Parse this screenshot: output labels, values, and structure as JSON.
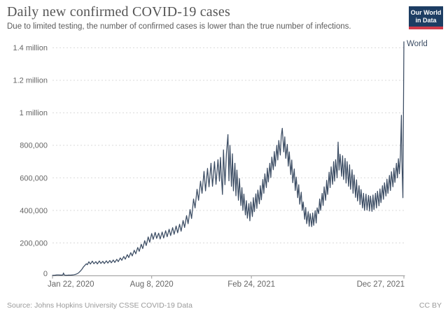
{
  "header": {
    "title": "Daily new confirmed COVID-19 cases",
    "subtitle": "Due to limited testing, the number of confirmed cases is lower than the true number of infections.",
    "logo": {
      "line1": "Our World",
      "line2": "in Data"
    }
  },
  "footer": {
    "source": "Source: Johns Hopkins University CSSE COVID-19 Data",
    "license": "CC BY"
  },
  "colors": {
    "line": "#3b4c63",
    "grid": "#d9d9d9",
    "axis": "#999999",
    "tick_label": "#666666",
    "series_label": "#3b4c63",
    "logo_bg": "#1d3d63",
    "logo_red": "#d13b4b"
  },
  "chart_data": {
    "type": "line",
    "title": "Daily new confirmed COVID-19 cases",
    "xlabel": "",
    "ylabel": "",
    "grid": true,
    "legend_position": "end-of-line",
    "x_domain": [
      "Jan 22, 2020",
      "Dec 27, 2021"
    ],
    "x_domain_days": [
      0,
      705
    ],
    "ylim": [
      0,
      1450000
    ],
    "units": {
      "x": "days since Jan 22, 2020",
      "y": "cases, thousands"
    },
    "y_ticks": [
      {
        "v": 0,
        "label": "0"
      },
      {
        "v": 200,
        "label": "200,000"
      },
      {
        "v": 400,
        "label": "400,000"
      },
      {
        "v": 600,
        "label": "600,000"
      },
      {
        "v": 800,
        "label": "800,000"
      },
      {
        "v": 1000,
        "label": "1 million"
      },
      {
        "v": 1200,
        "label": "1.2 million"
      },
      {
        "v": 1400,
        "label": "1.4 million"
      }
    ],
    "x_ticks": [
      {
        "d": 0,
        "label": "Jan 22, 2020",
        "anchor": "start"
      },
      {
        "d": 199,
        "label": "Aug 8, 2020",
        "anchor": "middle"
      },
      {
        "d": 399,
        "label": "Feb 24, 2021",
        "anchor": "middle"
      },
      {
        "d": 705,
        "label": "Dec 27, 2021",
        "anchor": "end"
      }
    ],
    "series": [
      {
        "name": "World",
        "color": "#3b4c63",
        "points_day_valueThousands": [
          [
            0,
            0.5
          ],
          [
            3,
            0.8
          ],
          [
            6,
            2
          ],
          [
            9,
            3.1
          ],
          [
            12,
            3
          ],
          [
            15,
            2.6
          ],
          [
            18,
            2.2
          ],
          [
            21,
            3.9
          ],
          [
            22,
            15.1
          ],
          [
            23,
            6.5
          ],
          [
            25,
            1.4
          ],
          [
            28,
            1
          ],
          [
            31,
            1.9
          ],
          [
            34,
            2.2
          ],
          [
            38,
            2.8
          ],
          [
            42,
            4
          ],
          [
            46,
            6.5
          ],
          [
            50,
            11
          ],
          [
            53,
            18
          ],
          [
            56,
            27
          ],
          [
            59,
            38
          ],
          [
            62,
            52
          ],
          [
            65,
            62
          ],
          [
            68,
            72
          ],
          [
            70,
            66
          ],
          [
            73,
            84
          ],
          [
            76,
            70
          ],
          [
            80,
            88
          ],
          [
            83,
            72
          ],
          [
            87,
            85
          ],
          [
            90,
            71
          ],
          [
            94,
            89
          ],
          [
            97,
            74
          ],
          [
            101,
            87
          ],
          [
            104,
            73
          ],
          [
            108,
            90
          ],
          [
            111,
            76
          ],
          [
            115,
            92
          ],
          [
            118,
            78
          ],
          [
            122,
            95
          ],
          [
            125,
            80
          ],
          [
            129,
            99
          ],
          [
            132,
            85
          ],
          [
            136,
            108
          ],
          [
            139,
            93
          ],
          [
            143,
            117
          ],
          [
            146,
            100
          ],
          [
            150,
            128
          ],
          [
            153,
            110
          ],
          [
            157,
            140
          ],
          [
            160,
            120
          ],
          [
            164,
            155
          ],
          [
            167,
            133
          ],
          [
            171,
            172
          ],
          [
            174,
            148
          ],
          [
            178,
            192
          ],
          [
            181,
            165
          ],
          [
            185,
            214
          ],
          [
            188,
            184
          ],
          [
            192,
            237
          ],
          [
            195,
            204
          ],
          [
            199,
            258
          ],
          [
            202,
            222
          ],
          [
            206,
            265
          ],
          [
            209,
            228
          ],
          [
            213,
            260
          ],
          [
            216,
            224
          ],
          [
            220,
            267
          ],
          [
            223,
            230
          ],
          [
            227,
            275
          ],
          [
            230,
            238
          ],
          [
            234,
            284
          ],
          [
            237,
            245
          ],
          [
            241,
            294
          ],
          [
            244,
            253
          ],
          [
            248,
            304
          ],
          [
            251,
            262
          ],
          [
            255,
            315
          ],
          [
            258,
            272
          ],
          [
            262,
            338
          ],
          [
            265,
            295
          ],
          [
            269,
            368
          ],
          [
            272,
            318
          ],
          [
            276,
            405
          ],
          [
            279,
            350
          ],
          [
            283,
            470
          ],
          [
            286,
            415
          ],
          [
            290,
            530
          ],
          [
            293,
            462
          ],
          [
            297,
            580
          ],
          [
            300,
            505
          ],
          [
            304,
            640
          ],
          [
            307,
            520
          ],
          [
            311,
            658
          ],
          [
            314,
            545
          ],
          [
            318,
            690
          ],
          [
            321,
            548
          ],
          [
            325,
            700
          ],
          [
            328,
            560
          ],
          [
            332,
            712
          ],
          [
            335,
            580
          ],
          [
            337,
            726
          ],
          [
            339,
            600
          ],
          [
            341,
            498
          ],
          [
            343,
            772
          ],
          [
            346,
            558
          ],
          [
            349,
            752
          ],
          [
            352,
            866
          ],
          [
            354,
            582
          ],
          [
            356,
            800
          ],
          [
            359,
            548
          ],
          [
            361,
            748
          ],
          [
            363,
            520
          ],
          [
            366,
            690
          ],
          [
            368,
            490
          ],
          [
            370,
            648
          ],
          [
            373,
            462
          ],
          [
            375,
            596
          ],
          [
            378,
            430
          ],
          [
            380,
            540
          ],
          [
            382,
            400
          ],
          [
            384,
            500
          ],
          [
            387,
            372
          ],
          [
            389,
            460
          ],
          [
            391,
            352
          ],
          [
            394,
            442
          ],
          [
            396,
            336
          ],
          [
            398,
            452
          ],
          [
            401,
            362
          ],
          [
            403,
            478
          ],
          [
            405,
            392
          ],
          [
            408,
            502
          ],
          [
            410,
            412
          ],
          [
            412,
            525
          ],
          [
            415,
            440
          ],
          [
            417,
            552
          ],
          [
            419,
            465
          ],
          [
            422,
            590
          ],
          [
            424,
            505
          ],
          [
            426,
            625
          ],
          [
            429,
            540
          ],
          [
            431,
            660
          ],
          [
            433,
            575
          ],
          [
            436,
            690
          ],
          [
            438,
            602
          ],
          [
            440,
            728
          ],
          [
            443,
            650
          ],
          [
            445,
            762
          ],
          [
            447,
            672
          ],
          [
            450,
            800
          ],
          [
            452,
            710
          ],
          [
            454,
            830
          ],
          [
            457,
            740
          ],
          [
            459,
            858
          ],
          [
            461,
            905
          ],
          [
            464,
            760
          ],
          [
            466,
            852
          ],
          [
            468,
            720
          ],
          [
            471,
            806
          ],
          [
            473,
            672
          ],
          [
            475,
            760
          ],
          [
            478,
            620
          ],
          [
            480,
            710
          ],
          [
            482,
            570
          ],
          [
            485,
            655
          ],
          [
            487,
            522
          ],
          [
            489,
            605
          ],
          [
            492,
            478
          ],
          [
            494,
            558
          ],
          [
            496,
            438
          ],
          [
            499,
            512
          ],
          [
            501,
            400
          ],
          [
            503,
            452
          ],
          [
            506,
            345
          ],
          [
            508,
            418
          ],
          [
            510,
            318
          ],
          [
            513,
            392
          ],
          [
            515,
            302
          ],
          [
            517,
            380
          ],
          [
            520,
            300
          ],
          [
            522,
            384
          ],
          [
            524,
            308
          ],
          [
            527,
            398
          ],
          [
            529,
            322
          ],
          [
            531,
            416
          ],
          [
            534,
            380
          ],
          [
            536,
            470
          ],
          [
            538,
            400
          ],
          [
            541,
            505
          ],
          [
            543,
            430
          ],
          [
            545,
            545
          ],
          [
            548,
            462
          ],
          [
            550,
            585
          ],
          [
            552,
            498
          ],
          [
            555,
            635
          ],
          [
            557,
            540
          ],
          [
            559,
            668
          ],
          [
            562,
            560
          ],
          [
            564,
            700
          ],
          [
            566,
            580
          ],
          [
            568,
            712
          ],
          [
            571,
            600
          ],
          [
            573,
            820
          ],
          [
            575,
            648
          ],
          [
            577,
            745
          ],
          [
            580,
            610
          ],
          [
            582,
            736
          ],
          [
            584,
            590
          ],
          [
            587,
            720
          ],
          [
            589,
            568
          ],
          [
            591,
            700
          ],
          [
            594,
            548
          ],
          [
            596,
            680
          ],
          [
            598,
            530
          ],
          [
            601,
            650
          ],
          [
            603,
            505
          ],
          [
            605,
            618
          ],
          [
            608,
            480
          ],
          [
            610,
            588
          ],
          [
            612,
            458
          ],
          [
            615,
            552
          ],
          [
            617,
            436
          ],
          [
            619,
            528
          ],
          [
            622,
            415
          ],
          [
            624,
            505
          ],
          [
            626,
            400
          ],
          [
            629,
            500
          ],
          [
            631,
            402
          ],
          [
            634,
            492
          ],
          [
            636,
            396
          ],
          [
            638,
            488
          ],
          [
            641,
            394
          ],
          [
            643,
            495
          ],
          [
            645,
            405
          ],
          [
            648,
            505
          ],
          [
            650,
            415
          ],
          [
            652,
            518
          ],
          [
            655,
            428
          ],
          [
            657,
            532
          ],
          [
            659,
            448
          ],
          [
            662,
            552
          ],
          [
            664,
            468
          ],
          [
            666,
            570
          ],
          [
            669,
            488
          ],
          [
            671,
            592
          ],
          [
            673,
            505
          ],
          [
            676,
            615
          ],
          [
            678,
            522
          ],
          [
            680,
            638
          ],
          [
            683,
            545
          ],
          [
            685,
            660
          ],
          [
            687,
            572
          ],
          [
            690,
            690
          ],
          [
            692,
            600
          ],
          [
            694,
            718
          ],
          [
            696,
            625
          ],
          [
            698,
            740
          ],
          [
            700,
            985
          ],
          [
            701,
            700
          ],
          [
            703,
            478
          ],
          [
            705,
            1437
          ]
        ]
      }
    ]
  }
}
